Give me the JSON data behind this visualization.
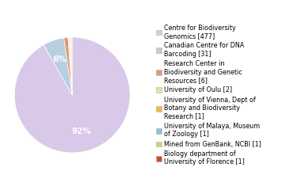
{
  "labels": [
    "Centre for Biodiversity\nGenomics [477]",
    "Canadian Centre for DNA\nBarcoding [31]",
    "Research Center in\nBiodiversity and Genetic\nResources [6]",
    "University of Oulu [2]",
    "University of Vienna, Dept of\nBotany and Biodiversity\nResearch [1]",
    "University of Malaya, Museum\nof Zoology [1]",
    "Mined from GenBank, NCBI [1]",
    "Biology department of\nUniversity of Florence [1]"
  ],
  "values": [
    477,
    31,
    6,
    2,
    1,
    1,
    1,
    1
  ],
  "colors": [
    "#d9c8e8",
    "#b8cfe0",
    "#e09878",
    "#dde8a0",
    "#f0b840",
    "#8ec0d8",
    "#c8d870",
    "#d04828"
  ],
  "figsize": [
    3.8,
    2.4
  ],
  "dpi": 100,
  "startangle": 90,
  "pct_threshold": 4,
  "legend_fontsize": 5.8,
  "autopct_fontsize": 7.5,
  "background": "#ffffff"
}
